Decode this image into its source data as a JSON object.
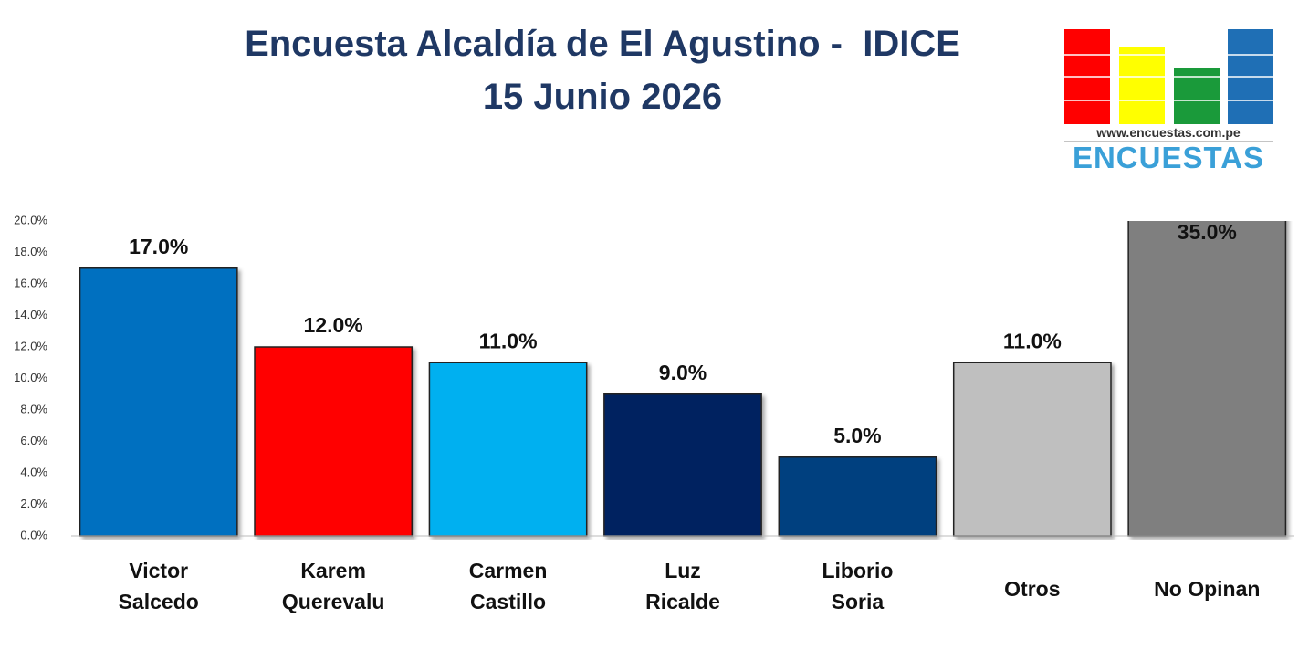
{
  "chart_data": {
    "type": "bar",
    "title": "Encuesta Alcaldía de El Agustino -  IDICE",
    "subtitle": "15 Junio 2026",
    "categories": [
      "Victor\nSalcedo",
      "Karem\nQuerevalu",
      "Carmen\nCastillo",
      "Luz\nRicalde",
      "Liborio\nSoria",
      "Otros",
      "No Opinan"
    ],
    "values": [
      17,
      12,
      11,
      9,
      5,
      11,
      35
    ],
    "value_labels": [
      "17.0%",
      "12.0%",
      "11.0%",
      "9.0%",
      "5.0%",
      "11.0%",
      "35.0%"
    ],
    "colors": [
      "#0070c0",
      "#ff0000",
      "#00b0f0",
      "#002060",
      "#003f7f",
      "#bfbfbf",
      "#7f7f7f"
    ],
    "ylim": [
      0,
      20
    ],
    "yticks": [
      {
        "value": 0,
        "label": "0.0%"
      },
      {
        "value": 2,
        "label": "2.0%"
      },
      {
        "value": 4,
        "label": "4.0%"
      },
      {
        "value": 6,
        "label": "6.0%"
      },
      {
        "value": 8,
        "label": "8.0%"
      },
      {
        "value": 10,
        "label": "10.0%"
      },
      {
        "value": 12,
        "label": "12.0%"
      },
      {
        "value": 14,
        "label": "14.0%"
      },
      {
        "value": 16,
        "label": "16.0%"
      },
      {
        "value": 18,
        "label": "18.0%"
      },
      {
        "value": 20,
        "label": "20.0%"
      }
    ],
    "grid": false
  },
  "logo": {
    "url": "www.encuestas.com.pe",
    "name": "ENCUESTAS"
  }
}
